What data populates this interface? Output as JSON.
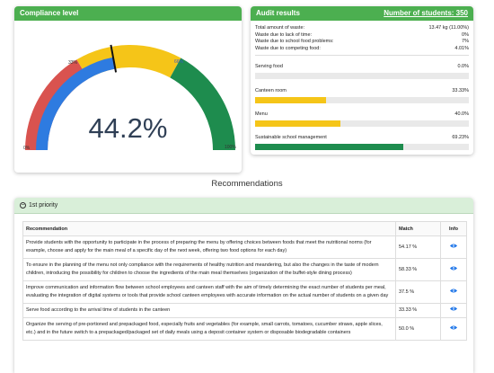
{
  "gauge": {
    "title": "Compliance level",
    "value_label": "44.2%",
    "value": 44.2,
    "labels": {
      "min": "0%",
      "low": "33%",
      "high": "66%",
      "max": "100%"
    },
    "bands": [
      {
        "from": 0,
        "to": 33,
        "color": "#d9534f"
      },
      {
        "from": 33,
        "to": 66,
        "color": "#f5c518"
      },
      {
        "from": 66,
        "to": 100,
        "color": "#1e8c4e"
      }
    ],
    "inner_fill": 44.2,
    "inner_color": "#2e7be0"
  },
  "audit": {
    "title": "Audit results",
    "students_label": "Number of students: 350",
    "waste": [
      {
        "label": "Total amount of waste:",
        "value": "13.47 kg (11.00%)"
      },
      {
        "label": "Waste due to lack of time:",
        "value": "0%"
      },
      {
        "label": "Waste due to school food problems:",
        "value": "7%"
      },
      {
        "label": "Waste due to competing food:",
        "value": "4.01%"
      }
    ],
    "metrics": [
      {
        "label": "Serving food",
        "value": "0.0%",
        "fill": 0.0,
        "color": "#f5c518"
      },
      {
        "label": "Canteen room",
        "value": "33.33%",
        "fill": 33.33,
        "color": "#f5c518"
      },
      {
        "label": "Menu",
        "value": "40.0%",
        "fill": 40.0,
        "color": "#f5c518"
      },
      {
        "label": "Sustainable school management",
        "value": "69.23%",
        "fill": 69.23,
        "color": "#1e8c4e"
      }
    ]
  },
  "recommendations": {
    "title": "Recommendations",
    "priority_label": "1st priority",
    "headers": {
      "rec": "Recommendation",
      "match": "Match",
      "info": "Info"
    },
    "rows": [
      {
        "text": "Provide students with the opportunity to participate in the process of preparing the menu by offering choices between foods that meet the nutritional norms (for example, choose and apply for the main meal of a specific day of the next week, offering two food options for each day)",
        "match": "54.17 %"
      },
      {
        "text": "To ensure in the planning of the menu not only compliance with the requirements of healthy nutrition and meandering, but also the changes in the taste of modern children, introducing the possibility for children to choose the ingredients of the main meal themselves (organization of the buffet-style dining process)",
        "match": "58.33 %"
      },
      {
        "text": "Improve communication and information flow between school employees and canteen staff with the aim of timely determining the exact number of students per meal, evaluating the integration of digital systems or tools that provide school canteen employees with accurate information on the actual number of students on a given day",
        "match": "37.5 %"
      },
      {
        "text": "Serve food according to the arrival time of students in the canteen",
        "match": "33.33 %"
      },
      {
        "text": "Organize the serving of pre-portioned and prepackaged food, especially fruits and vegetables (for example, small carrots, tomatoes, cucumber straws, apple slices, etc.) and in the future switch to a prepackaged/packaged set of daily meals using a deposit container system or disposable biodegradable containers",
        "match": "50.0 %"
      }
    ]
  }
}
